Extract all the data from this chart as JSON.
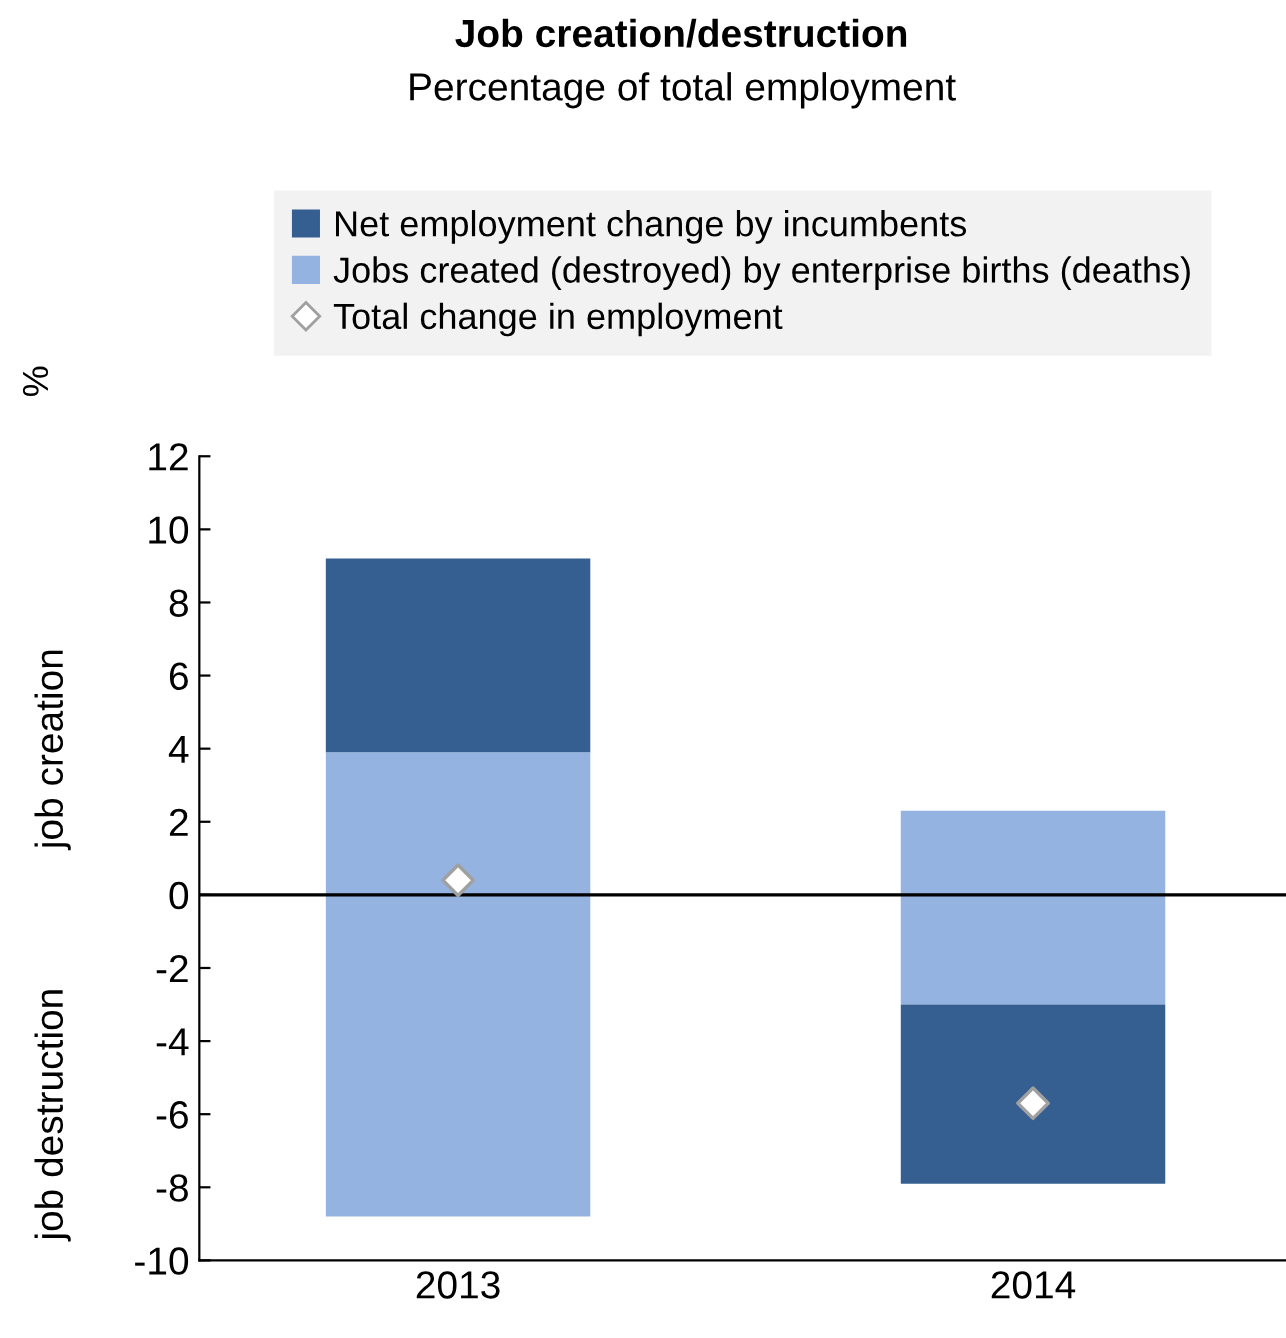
{
  "chart_data": {
    "type": "bar",
    "title": "Job creation/destruction",
    "subtitle": "Percentage of total employment",
    "ylabel": "%",
    "annotations": [
      "job creation",
      "job destruction"
    ],
    "categories": [
      "2013",
      "2014"
    ],
    "stacked": true,
    "series": [
      {
        "name": "Jobs created (destroyed) by enterprise births (deaths)",
        "color": "#95b3e0",
        "values": [
          3.9,
          2.3
        ]
      },
      {
        "color": "#95b3e0",
        "values": [
          -8.8,
          -3.0
        ]
      },
      {
        "name": "Net employment change by incumbents",
        "color": "#355f91",
        "values": [
          5.3,
          -4.9
        ]
      },
      {
        "name": "Total change in employment",
        "type": "scatter",
        "color": "#ffffff",
        "marker": "diamond",
        "values": [
          0.4,
          -5.7
        ]
      }
    ],
    "ylim": [
      -10,
      12
    ],
    "yticks": [
      -10,
      -8,
      -6,
      -4,
      -2,
      0,
      2,
      4,
      6,
      8,
      10,
      12
    ],
    "ref_lines": [
      {
        "axis": "y",
        "value": 0,
        "color": "#000000"
      }
    ],
    "grid": false,
    "legend": "top"
  }
}
